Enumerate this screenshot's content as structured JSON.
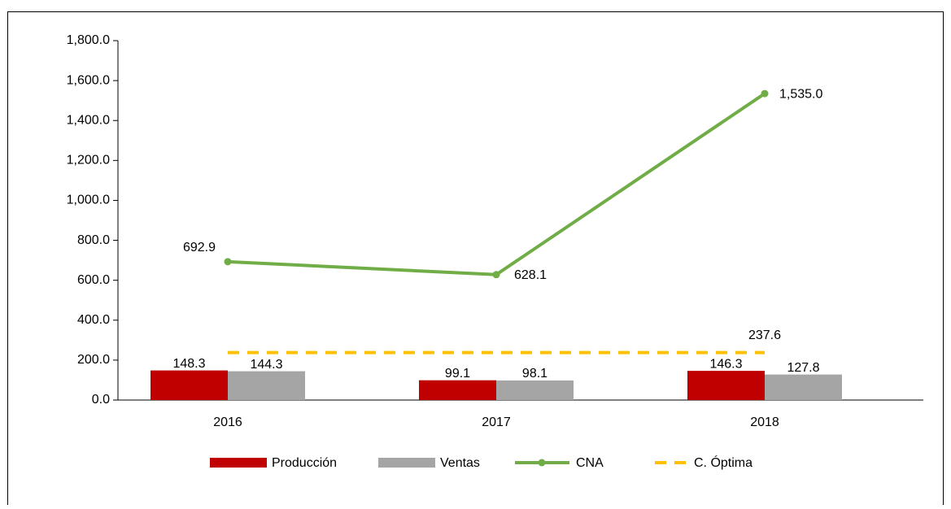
{
  "chart_data": {
    "type": "bar-line",
    "categories": [
      "2016",
      "2017",
      "2018"
    ],
    "series": [
      {
        "name": "Producción",
        "type": "bar",
        "color": "#c00000",
        "values": [
          148.3,
          99.1,
          146.3
        ]
      },
      {
        "name": "Ventas",
        "type": "bar",
        "color": "#a5a5a5",
        "values": [
          144.3,
          98.1,
          127.8
        ]
      },
      {
        "name": "CNA",
        "type": "line",
        "color": "#70ad47",
        "values": [
          692.9,
          628.1,
          1535.0
        ],
        "value_labels": [
          "692.9",
          "628.1",
          "1,535.0"
        ]
      },
      {
        "name": "C. Óptima",
        "type": "dashed-line",
        "color": "#ffc000",
        "values": [
          237.6,
          237.6,
          237.6
        ],
        "value_labels": [
          null,
          null,
          "237.6"
        ]
      }
    ],
    "ylim": [
      0,
      1800
    ],
    "yticks": [
      {
        "value": 0,
        "label": "0.0"
      },
      {
        "value": 200,
        "label": "200.0"
      },
      {
        "value": 400,
        "label": "400.0"
      },
      {
        "value": 600,
        "label": "600.0"
      },
      {
        "value": 800,
        "label": "800.0"
      },
      {
        "value": 1000,
        "label": "1,000.0"
      },
      {
        "value": 1200,
        "label": "1,200.0"
      },
      {
        "value": 1400,
        "label": "1,400.0"
      },
      {
        "value": 1600,
        "label": "1,600.0"
      },
      {
        "value": 1800,
        "label": "1,800.0"
      }
    ],
    "legend": "bottom"
  }
}
